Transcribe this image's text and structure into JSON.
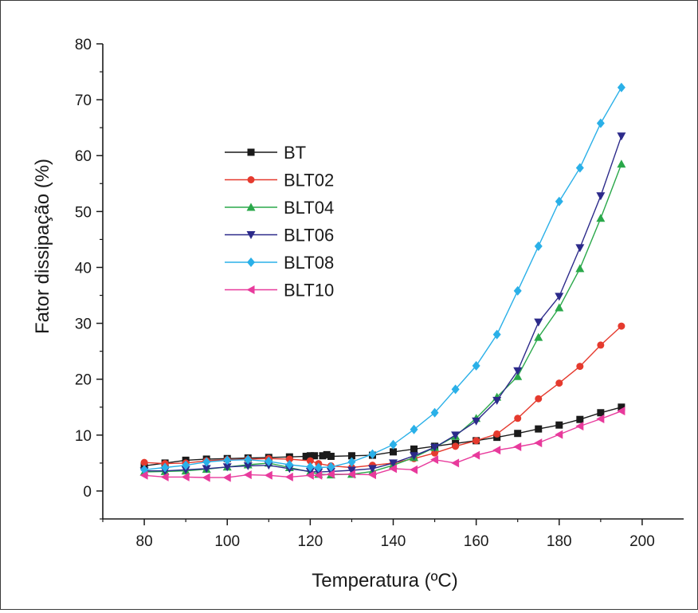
{
  "chart_data": {
    "type": "line",
    "title": "",
    "xlabel": "Temperatura (ºC)",
    "ylabel": "Fator dissipação (%)",
    "xlim": [
      70,
      210
    ],
    "ylim": [
      -5,
      80
    ],
    "xticks": [
      "80",
      "100",
      "120",
      "140",
      "160",
      "180",
      "200"
    ],
    "yticks": [
      "0",
      "10",
      "20",
      "30",
      "40",
      "50",
      "60",
      "70",
      "80"
    ],
    "grid": false,
    "legend_position": "upper-left",
    "series": [
      {
        "name": "BT",
        "color": "#1a1a1a",
        "marker": "square",
        "x": [
          80,
          85,
          90,
          95,
          100,
          105,
          110,
          115,
          119,
          120,
          121,
          123,
          124,
          125,
          130,
          135,
          140,
          145,
          150,
          155,
          160,
          165,
          170,
          175,
          180,
          185,
          190,
          195
        ],
        "y": [
          4.5,
          5.0,
          5.5,
          5.7,
          5.8,
          5.9,
          6.0,
          6.1,
          6.2,
          6.3,
          6.3,
          6.3,
          6.5,
          6.2,
          6.3,
          6.4,
          7.0,
          7.5,
          8.0,
          8.5,
          9.0,
          9.6,
          10.3,
          11.1,
          11.8,
          12.8,
          14.0,
          15.0
        ]
      },
      {
        "name": "BLT02",
        "color": "#e53a2e",
        "marker": "circle",
        "x": [
          80,
          85,
          90,
          95,
          100,
          105,
          110,
          115,
          120,
          122,
          125,
          130,
          135,
          140,
          145,
          150,
          155,
          160,
          165,
          170,
          175,
          180,
          185,
          190,
          195
        ],
        "y": [
          5.1,
          4.9,
          5.0,
          5.4,
          5.6,
          5.7,
          5.8,
          5.7,
          5.4,
          4.9,
          4.5,
          4.2,
          4.6,
          5.0,
          5.8,
          6.8,
          8.0,
          9.0,
          10.2,
          13.0,
          16.5,
          19.3,
          22.3,
          26.1,
          29.5
        ]
      },
      {
        "name": "BLT04",
        "color": "#2aa84a",
        "marker": "triangle-up",
        "x": [
          80,
          85,
          90,
          95,
          100,
          105,
          110,
          115,
          120,
          122,
          125,
          130,
          135,
          140,
          145,
          150,
          155,
          160,
          165,
          170,
          175,
          180,
          185,
          190,
          195
        ],
        "y": [
          3.4,
          3.5,
          3.6,
          3.9,
          4.3,
          4.7,
          5.0,
          4.2,
          3.4,
          3.0,
          2.9,
          3.0,
          3.5,
          4.6,
          6.0,
          7.8,
          9.8,
          13.0,
          16.8,
          20.5,
          27.5,
          32.8,
          39.8,
          48.8,
          58.5
        ]
      },
      {
        "name": "BLT06",
        "color": "#2c2a8a",
        "marker": "triangle-down",
        "x": [
          80,
          85,
          90,
          95,
          100,
          105,
          110,
          115,
          120,
          122,
          125,
          130,
          135,
          140,
          145,
          150,
          155,
          160,
          165,
          170,
          175,
          180,
          185,
          190,
          195
        ],
        "y": [
          3.6,
          3.6,
          3.8,
          4.0,
          4.3,
          4.5,
          4.6,
          4.0,
          3.5,
          3.4,
          3.5,
          3.7,
          4.0,
          5.0,
          6.3,
          7.8,
          10.0,
          12.5,
          16.2,
          21.5,
          30.2,
          34.8,
          43.5,
          52.8,
          63.5
        ]
      },
      {
        "name": "BLT08",
        "color": "#2ab0e8",
        "marker": "diamond",
        "x": [
          80,
          85,
          90,
          95,
          100,
          105,
          110,
          115,
          120,
          122,
          125,
          130,
          135,
          140,
          145,
          150,
          155,
          160,
          165,
          170,
          175,
          180,
          185,
          190,
          195
        ],
        "y": [
          3.8,
          4.2,
          4.6,
          5.2,
          5.5,
          5.6,
          5.3,
          4.7,
          4.3,
          4.2,
          4.3,
          5.2,
          6.6,
          8.3,
          11.0,
          14.0,
          18.2,
          22.4,
          28.0,
          35.8,
          43.8,
          51.8,
          57.8,
          65.8,
          72.2
        ]
      },
      {
        "name": "BLT10",
        "color": "#e83a9c",
        "marker": "triangle-left",
        "x": [
          80,
          85,
          90,
          95,
          100,
          105,
          110,
          115,
          120,
          122,
          125,
          130,
          135,
          140,
          145,
          150,
          155,
          160,
          165,
          170,
          175,
          180,
          185,
          190,
          195
        ],
        "y": [
          2.8,
          2.5,
          2.5,
          2.4,
          2.4,
          2.9,
          2.8,
          2.5,
          2.8,
          2.8,
          3.0,
          3.0,
          2.9,
          4.0,
          3.8,
          5.6,
          5.0,
          6.4,
          7.3,
          7.9,
          8.6,
          10.1,
          11.6,
          12.9,
          14.3
        ]
      }
    ]
  }
}
